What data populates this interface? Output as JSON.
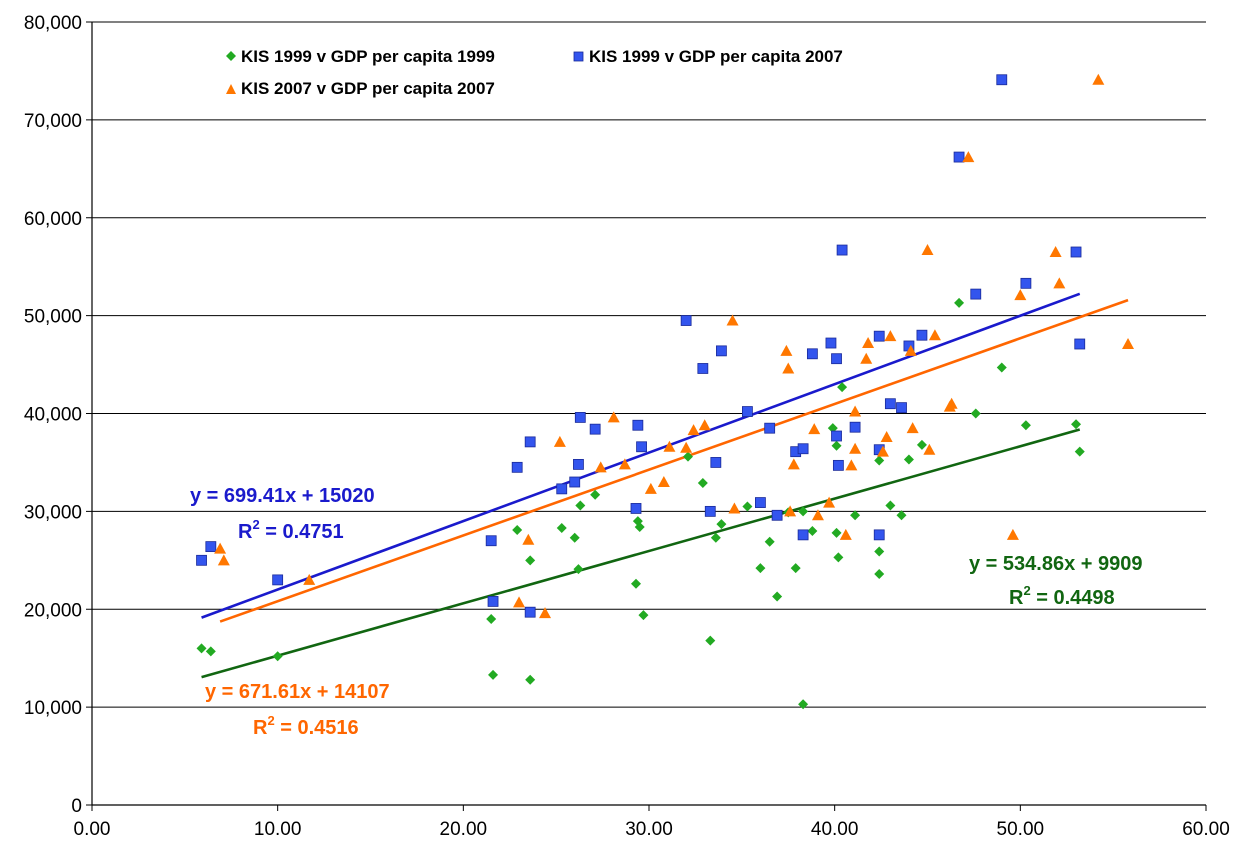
{
  "chart_data": {
    "type": "scatter",
    "title": "",
    "xlabel": "",
    "ylabel": "",
    "xlim": [
      0,
      60
    ],
    "ylim": [
      0,
      80000
    ],
    "x_ticks": [
      0,
      10,
      20,
      30,
      40,
      50,
      60
    ],
    "x_tick_labels": [
      "0.00",
      "10.00",
      "20.00",
      "30.00",
      "40.00",
      "50.00",
      "60.00"
    ],
    "y_ticks": [
      0,
      10000,
      20000,
      30000,
      40000,
      50000,
      60000,
      70000,
      80000
    ],
    "y_tick_labels": [
      "0",
      "10,000",
      "20,000",
      "30,000",
      "40,000",
      "50,000",
      "60,000",
      "70,000",
      "80,000"
    ],
    "grid": "horizontal",
    "legend_position": "top-left",
    "series": [
      {
        "name": "KIS 1999 v GDP per capita 1999",
        "marker": "diamond",
        "color": "#22aa22",
        "points": [
          [
            5.9,
            16000
          ],
          [
            6.4,
            15700
          ],
          [
            10,
            15200
          ],
          [
            21.5,
            19000
          ],
          [
            21.6,
            13300
          ],
          [
            22.9,
            28100
          ],
          [
            23.6,
            25000
          ],
          [
            23.6,
            12800
          ],
          [
            25.3,
            28300
          ],
          [
            26,
            27300
          ],
          [
            26.2,
            24100
          ],
          [
            26.3,
            30600
          ],
          [
            27.1,
            31700
          ],
          [
            29.3,
            22600
          ],
          [
            29.4,
            29000
          ],
          [
            29.5,
            28400
          ],
          [
            29.7,
            19400
          ],
          [
            32.1,
            35600
          ],
          [
            32.9,
            32900
          ],
          [
            33.3,
            16800
          ],
          [
            33.6,
            27300
          ],
          [
            33.9,
            28700
          ],
          [
            35.3,
            30500
          ],
          [
            36,
            24200
          ],
          [
            36.5,
            26900
          ],
          [
            36.9,
            21300
          ],
          [
            37.5,
            29900
          ],
          [
            37.9,
            24200
          ],
          [
            38.3,
            30000
          ],
          [
            38.3,
            10300
          ],
          [
            38.8,
            28000
          ],
          [
            39.9,
            38500
          ],
          [
            40.1,
            36700
          ],
          [
            40.1,
            27800
          ],
          [
            40.2,
            25300
          ],
          [
            40.4,
            42700
          ],
          [
            41.1,
            29600
          ],
          [
            42.4,
            35200
          ],
          [
            42.4,
            25900
          ],
          [
            42.4,
            23600
          ],
          [
            43,
            30600
          ],
          [
            43.6,
            29600
          ],
          [
            44,
            35300
          ],
          [
            44.7,
            36800
          ],
          [
            46.7,
            51300
          ],
          [
            47.6,
            40000
          ],
          [
            49,
            44700
          ],
          [
            50.3,
            38800
          ],
          [
            53,
            38900
          ],
          [
            53.2,
            36100
          ]
        ]
      },
      {
        "name": "KIS 1999 v GDP per capita 2007",
        "marker": "square",
        "color": "#3355ee",
        "points": [
          [
            5.9,
            25000
          ],
          [
            6.4,
            26400
          ],
          [
            10,
            23000
          ],
          [
            21.5,
            27000
          ],
          [
            21.6,
            20800
          ],
          [
            22.9,
            34500
          ],
          [
            23.6,
            37100
          ],
          [
            23.6,
            19700
          ],
          [
            25.3,
            32300
          ],
          [
            26,
            33000
          ],
          [
            26.2,
            34800
          ],
          [
            26.3,
            39600
          ],
          [
            27.1,
            38400
          ],
          [
            29.3,
            30300
          ],
          [
            29.4,
            38800
          ],
          [
            29.6,
            36600
          ],
          [
            32,
            49500
          ],
          [
            32.9,
            44600
          ],
          [
            33.3,
            30000
          ],
          [
            33.6,
            35000
          ],
          [
            33.9,
            46400
          ],
          [
            35.3,
            40200
          ],
          [
            36,
            30900
          ],
          [
            36.5,
            38500
          ],
          [
            36.9,
            29600
          ],
          [
            37.9,
            36100
          ],
          [
            38.3,
            36400
          ],
          [
            38.3,
            27600
          ],
          [
            38.8,
            46100
          ],
          [
            39.8,
            47200
          ],
          [
            40.1,
            45600
          ],
          [
            40.1,
            37700
          ],
          [
            40.2,
            34700
          ],
          [
            40.4,
            56700
          ],
          [
            41.1,
            38600
          ],
          [
            42.4,
            47900
          ],
          [
            42.4,
            36300
          ],
          [
            42.4,
            27600
          ],
          [
            43,
            41000
          ],
          [
            43.6,
            40600
          ],
          [
            44,
            46900
          ],
          [
            44.7,
            48000
          ],
          [
            46.7,
            66200
          ],
          [
            47.6,
            52200
          ],
          [
            49,
            74100
          ],
          [
            50.3,
            53300
          ],
          [
            53,
            56500
          ],
          [
            53.2,
            47100
          ]
        ]
      },
      {
        "name": "KIS 2007 v GDP per capita 2007",
        "marker": "triangle",
        "color": "#ff7700",
        "points": [
          [
            6.9,
            26200
          ],
          [
            7.1,
            25000
          ],
          [
            11.7,
            23000
          ],
          [
            23,
            20700
          ],
          [
            23.5,
            27100
          ],
          [
            24.4,
            19600
          ],
          [
            25.2,
            37100
          ],
          [
            27.4,
            34500
          ],
          [
            28.1,
            39600
          ],
          [
            28.7,
            34800
          ],
          [
            30.1,
            32300
          ],
          [
            30.8,
            33000
          ],
          [
            31.1,
            36600
          ],
          [
            32,
            36500
          ],
          [
            32.4,
            38300
          ],
          [
            33,
            38800
          ],
          [
            34.5,
            49500
          ],
          [
            34.6,
            30300
          ],
          [
            37.4,
            46400
          ],
          [
            37.5,
            44600
          ],
          [
            37.6,
            30000
          ],
          [
            37.8,
            34800
          ],
          [
            38.9,
            38400
          ],
          [
            39.1,
            29600
          ],
          [
            39.7,
            30900
          ],
          [
            40.6,
            27600
          ],
          [
            40.9,
            34700
          ],
          [
            41.1,
            36400
          ],
          [
            41.1,
            40200
          ],
          [
            41.7,
            45600
          ],
          [
            41.8,
            47200
          ],
          [
            42.6,
            36100
          ],
          [
            42.8,
            37600
          ],
          [
            43,
            47900
          ],
          [
            44.1,
            46400
          ],
          [
            44.2,
            38500
          ],
          [
            45,
            56700
          ],
          [
            45.1,
            36300
          ],
          [
            45.4,
            48000
          ],
          [
            46.2,
            40700
          ],
          [
            46.3,
            41000
          ],
          [
            47.2,
            66200
          ],
          [
            49.6,
            27600
          ],
          [
            50,
            52100
          ],
          [
            51.9,
            56500
          ],
          [
            52.1,
            53300
          ],
          [
            54.2,
            74100
          ],
          [
            55.8,
            47100
          ]
        ]
      }
    ],
    "trendlines": [
      {
        "series": "KIS 1999 v GDP per capita 2007",
        "color": "#1a1acc",
        "slope": 699.41,
        "intercept": 15020,
        "x_range": [
          5.9,
          53.2
        ],
        "equation": "y = 699.41x + 15020",
        "r2_prefix": "R",
        "r2_sup": "2",
        "r2_value": " = 0.4751"
      },
      {
        "series": "KIS 2007 v GDP per capita 2007",
        "color": "#ff6600",
        "slope": 671.61,
        "intercept": 14107,
        "x_range": [
          6.9,
          55.8
        ],
        "equation": "y = 671.61x + 14107",
        "r2_prefix": "R",
        "r2_sup": "2",
        "r2_value": " = 0.4516"
      },
      {
        "series": "KIS 1999 v GDP per capita 1999",
        "color": "#116611",
        "slope": 534.86,
        "intercept": 9909,
        "x_range": [
          5.9,
          53.2
        ],
        "equation": "y = 534.86x + 9909",
        "r2_prefix": "R",
        "r2_sup": "2",
        "r2_value": " = 0.4498"
      }
    ]
  }
}
